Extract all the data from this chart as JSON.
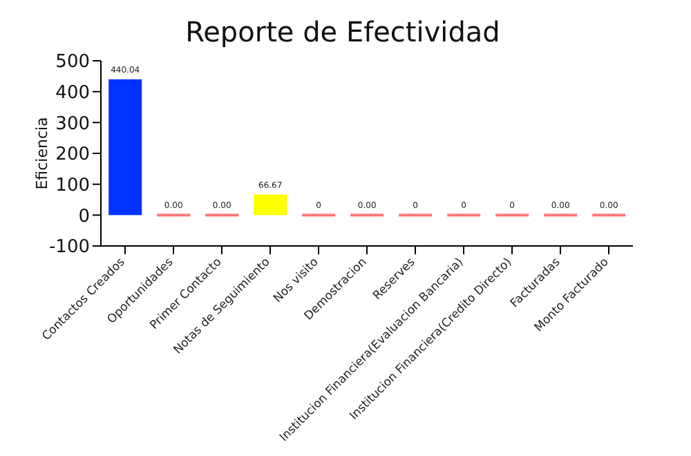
{
  "chart_data": {
    "type": "bar",
    "title": "Reporte de Efectividad",
    "ylabel": "Eficiencia",
    "categories": [
      "Contactos Creados",
      "Oportunidades",
      "Primer Contacto",
      "Notas de Seguimiento",
      "Nos visito",
      "Demostracion",
      "Reserves",
      "Institucion Financiera(Evaluacion Bancaria)",
      "Institucion Financiera(Credito Directo)",
      "Facturadas",
      "Monto Facturado"
    ],
    "values": [
      440.04,
      0,
      0,
      66.67,
      0,
      0,
      0,
      0,
      0,
      0,
      0
    ],
    "colors": [
      "#0033ff",
      "#ff7777",
      "#ff7777",
      "#ffff00",
      "#ff7777",
      "#ff7777",
      "#ff7777",
      "#ff7777",
      "#ff7777",
      "#ff7777",
      "#ff7777"
    ],
    "value_labels": [
      "440.04",
      "0.00",
      "0.00",
      "66.67",
      "0",
      "0.00",
      "0",
      "0",
      "0",
      "0.00",
      "0.00"
    ],
    "ylim": [
      -100,
      500
    ],
    "yticks": [
      -100,
      0,
      100,
      200,
      300,
      400,
      500
    ],
    "grid": false
  }
}
